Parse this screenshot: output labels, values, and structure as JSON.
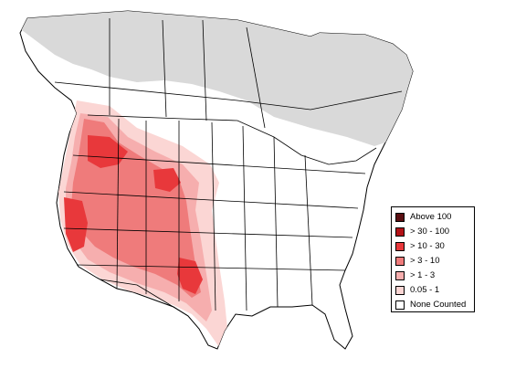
{
  "map": {
    "colors": {
      "above_100": "#5a0f12",
      "30_100": "#b31217",
      "10_30": "#e8383b",
      "3_10": "#ef7b7b",
      "1_3": "#f6aeae",
      "0_05_1": "#fbd6d4",
      "none": "#ffffff",
      "out_of_range": "#d9d9d9",
      "border": "#000000"
    }
  },
  "legend": {
    "items": [
      {
        "label": "Above 100",
        "color": "#5a0f12"
      },
      {
        "label": "> 30 - 100",
        "color": "#b31217"
      },
      {
        "label": "> 10 - 30",
        "color": "#e8383b"
      },
      {
        "label": "> 3 - 10",
        "color": "#ef7b7b"
      },
      {
        "label": "> 1 - 3",
        "color": "#f6aeae"
      },
      {
        "label": "0.05 - 1",
        "color": "#fbd6d4"
      },
      {
        "label": "None Counted",
        "color": "#ffffff"
      }
    ]
  }
}
